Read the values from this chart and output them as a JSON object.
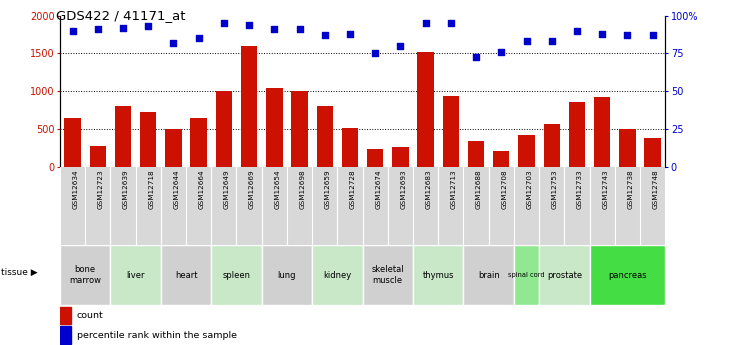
{
  "title": "GDS422 / 41171_at",
  "gsm_labels": [
    "GSM12634",
    "GSM12723",
    "GSM12639",
    "GSM12718",
    "GSM12644",
    "GSM12664",
    "GSM12649",
    "GSM12669",
    "GSM12654",
    "GSM12698",
    "GSM12659",
    "GSM12728",
    "GSM12674",
    "GSM12693",
    "GSM12683",
    "GSM12713",
    "GSM12688",
    "GSM12708",
    "GSM12703",
    "GSM12753",
    "GSM12733",
    "GSM12743",
    "GSM12738",
    "GSM12748"
  ],
  "counts": [
    650,
    280,
    810,
    725,
    510,
    650,
    1000,
    1600,
    1050,
    1010,
    810,
    520,
    240,
    270,
    1520,
    940,
    345,
    210,
    430,
    575,
    860,
    920,
    510,
    390
  ],
  "percentiles": [
    90,
    91,
    92,
    93,
    82,
    85,
    95,
    94,
    91,
    91,
    87,
    88,
    75,
    80,
    95,
    95,
    73,
    76,
    83,
    83,
    90,
    88,
    87,
    87
  ],
  "tissues": [
    {
      "name": "bone\nmarrow",
      "start": 0,
      "end": 2,
      "color": "#d0d0d0"
    },
    {
      "name": "liver",
      "start": 2,
      "end": 4,
      "color": "#c8e8c8"
    },
    {
      "name": "heart",
      "start": 4,
      "end": 6,
      "color": "#d0d0d0"
    },
    {
      "name": "spleen",
      "start": 6,
      "end": 8,
      "color": "#c8e8c8"
    },
    {
      "name": "lung",
      "start": 8,
      "end": 10,
      "color": "#d0d0d0"
    },
    {
      "name": "kidney",
      "start": 10,
      "end": 12,
      "color": "#c8e8c8"
    },
    {
      "name": "skeletal\nmuscle",
      "start": 12,
      "end": 14,
      "color": "#d0d0d0"
    },
    {
      "name": "thymus",
      "start": 14,
      "end": 16,
      "color": "#c8e8c8"
    },
    {
      "name": "brain",
      "start": 16,
      "end": 18,
      "color": "#d0d0d0"
    },
    {
      "name": "spinal cord",
      "start": 18,
      "end": 19,
      "color": "#90e890"
    },
    {
      "name": "prostate",
      "start": 19,
      "end": 21,
      "color": "#c8e8c8"
    },
    {
      "name": "pancreas",
      "start": 21,
      "end": 24,
      "color": "#44dd44"
    }
  ],
  "bar_color": "#cc1100",
  "dot_color": "#0000cc",
  "gsm_bg_color": "#d8d8d8",
  "ylim_left": [
    0,
    2000
  ],
  "ylim_right": [
    0,
    100
  ],
  "yticks_left": [
    0,
    500,
    1000,
    1500,
    2000
  ],
  "ytick_labels_left": [
    "0",
    "500",
    "1000",
    "1500",
    "2000"
  ],
  "yticks_right": [
    0,
    25,
    50,
    75,
    100
  ],
  "ytick_labels_right": [
    "0",
    "25",
    "50",
    "75",
    "100%"
  ]
}
